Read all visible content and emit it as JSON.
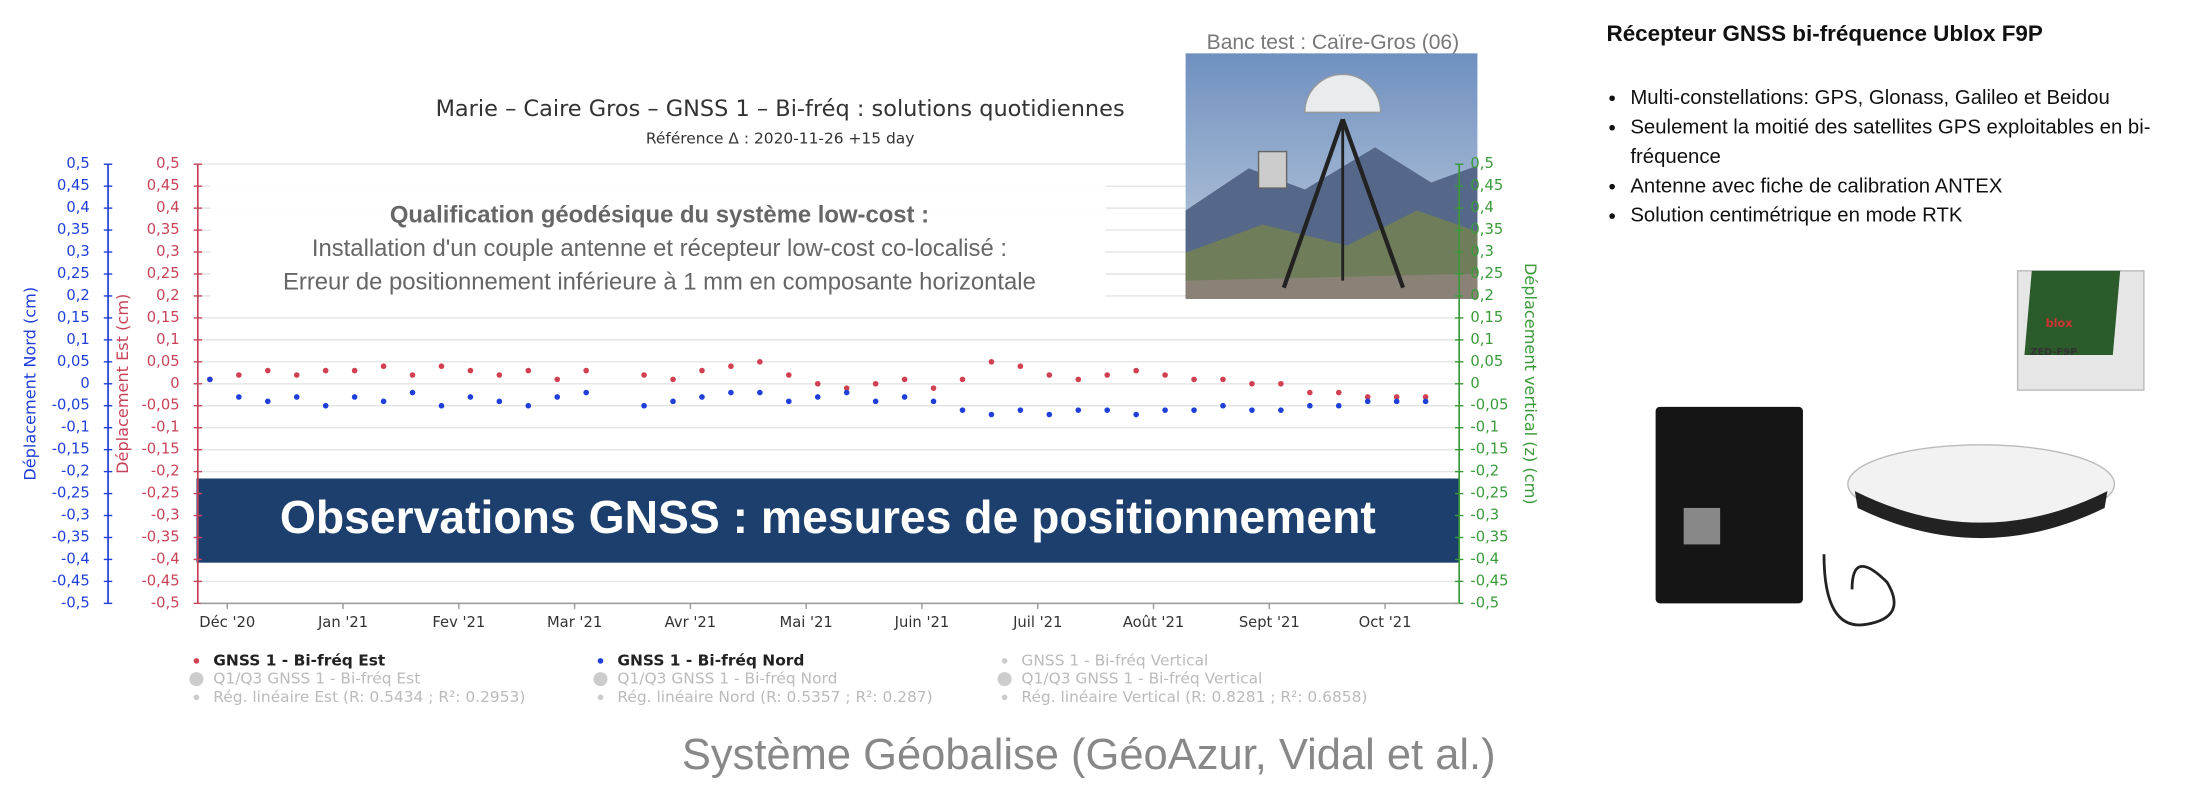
{
  "chart_data": {
    "type": "scatter",
    "title": "Marie – Caire Gros – GNSS 1 – Bi-fréq : solutions quotidiennes",
    "subtitle": "Référence Δ : 2020-11-26 +15 day",
    "annotation": [
      "Qualification géodésique du système low-cost :",
      "Installation d'un couple antenne et récepteur low-cost co-localisé :",
      "Erreur de positionnement inférieure à 1 mm en composante horizontale"
    ],
    "y_axes": [
      {
        "label": "Déplacement Nord (cm)",
        "color": "#1f3fd8"
      },
      {
        "label": "Déplacement Est (cm)",
        "color": "#c8435a"
      },
      {
        "label": "Déplacement vertical (z) (cm)",
        "color": "#3a9a3a"
      }
    ],
    "ylim": [
      -0.5,
      0.5
    ],
    "yticks": [
      {
        "value": -0.5,
        "label": "-0,5"
      },
      {
        "value": -0.45,
        "label": "-0,45"
      },
      {
        "value": -0.4,
        "label": "-0,4"
      },
      {
        "value": -0.35,
        "label": "-0,35"
      },
      {
        "value": -0.3,
        "label": "-0,3"
      },
      {
        "value": -0.25,
        "label": "-0,25"
      },
      {
        "value": -0.2,
        "label": "-0,2"
      },
      {
        "value": -0.15,
        "label": "-0,15"
      },
      {
        "value": -0.1,
        "label": "-0,1"
      },
      {
        "value": -0.05,
        "label": "-0,05"
      },
      0,
      {
        "value": 0.05,
        "label": "0,05"
      },
      {
        "value": 0.1,
        "label": "0,1"
      },
      {
        "value": 0.15,
        "label": "0,15"
      },
      {
        "value": 0.2,
        "label": "0,2"
      },
      {
        "value": 0.25,
        "label": "0,25"
      },
      {
        "value": 0.3,
        "label": "0,3"
      },
      {
        "value": 0.35,
        "label": "0,35"
      },
      {
        "value": 0.4,
        "label": "0,4"
      },
      {
        "value": 0.45,
        "label": "0,45"
      },
      {
        "value": 0.5,
        "label": "0,5"
      }
    ],
    "xlim": [
      -0.23,
      10.64
    ],
    "xticks": [
      {
        "value": 0,
        "label": "Déc '20"
      },
      {
        "value": 1,
        "label": "Jan '21"
      },
      {
        "value": 2,
        "label": "Fev '21"
      },
      {
        "value": 3,
        "label": "Mar '21"
      },
      {
        "value": 4,
        "label": "Avr '21"
      },
      {
        "value": 5,
        "label": "Mai '21"
      },
      {
        "value": 6,
        "label": "Juin '21"
      },
      {
        "value": 7,
        "label": "Juil '21"
      },
      {
        "value": 8,
        "label": "Août '21"
      },
      {
        "value": 9,
        "label": "Sept '21"
      },
      {
        "value": 10,
        "label": "Oct '21"
      }
    ],
    "grid": true,
    "x": [
      -0.15,
      0.1,
      0.35,
      0.6,
      0.85,
      1.1,
      1.35,
      1.6,
      1.85,
      2.1,
      2.35,
      2.6,
      2.85,
      3.1,
      3.6,
      3.85,
      4.1,
      4.35,
      4.6,
      4.85,
      5.1,
      5.35,
      5.6,
      5.85,
      6.1,
      6.35,
      6.6,
      6.85,
      7.1,
      7.35,
      7.6,
      7.85,
      8.1,
      8.35,
      8.6,
      8.85,
      9.1,
      9.35,
      9.6,
      9.85,
      10.1,
      10.35
    ],
    "series": [
      {
        "name": "GNSS 1 - Bi-fréq Est",
        "color": "#d04050",
        "values": [
          0.01,
          0.02,
          0.03,
          0.02,
          0.03,
          0.03,
          0.04,
          0.02,
          0.04,
          0.03,
          0.02,
          0.03,
          0.01,
          0.03,
          0.02,
          0.01,
          0.03,
          0.04,
          0.05,
          0.02,
          0.0,
          -0.01,
          0.0,
          0.01,
          -0.01,
          0.01,
          0.05,
          0.04,
          0.02,
          0.01,
          0.02,
          0.03,
          0.02,
          0.01,
          0.01,
          0.0,
          0.0,
          -0.02,
          -0.02,
          -0.03,
          -0.03,
          -0.03
        ]
      },
      {
        "name": "GNSS 1 - Bi-fréq Nord",
        "color": "#1f3fd8",
        "values": [
          0.01,
          -0.03,
          -0.04,
          -0.03,
          -0.05,
          -0.03,
          -0.04,
          -0.02,
          -0.05,
          -0.03,
          -0.04,
          -0.05,
          -0.03,
          -0.02,
          -0.05,
          -0.04,
          -0.03,
          -0.02,
          -0.02,
          -0.04,
          -0.03,
          -0.02,
          -0.04,
          -0.03,
          -0.04,
          -0.06,
          -0.07,
          -0.06,
          -0.07,
          -0.06,
          -0.06,
          -0.07,
          -0.06,
          -0.06,
          -0.05,
          -0.06,
          -0.06,
          -0.05,
          -0.05,
          -0.04,
          -0.04,
          -0.04
        ]
      }
    ],
    "inactive_legend": [
      "Q1/Q3 GNSS 1 - Bi-fréq Est",
      "Rég. linéaire Est (R: 0.5434 ; R²: 0.2953)",
      "Q1/Q3 GNSS 1 - Bi-fréq Nord",
      "Rég. linéaire Nord (R: 0.5357 ; R²: 0.287)",
      "GNSS 1 - Bi-fréq Vertical",
      "Q1/Q3 GNSS 1 - Bi-fréq Vertical",
      "Rég. linéaire Vertical (R: 0.8281 ; R²: 0.6858)"
    ]
  },
  "banner": "Observations GNSS : mesures de positionnement",
  "photo_caption": "Banc test : Caïre-Gros (06)",
  "footer": "Système Géobalise (GéoAzur, Vidal et al.)",
  "side_panel": {
    "title": "Récepteur GNSS bi-fréquence Ublox F9P",
    "bullets": [
      "Multi-constellations: GPS, Glonass, Galileo et Beidou",
      "Seulement la moitié des satellites GPS exploitables en bi-fréquence",
      "Antenne avec fiche de calibration ANTEX",
      "Solution centimétrique en mode RTK"
    ],
    "chip_brand": "blox",
    "chip_label": "ZED-F9P"
  }
}
